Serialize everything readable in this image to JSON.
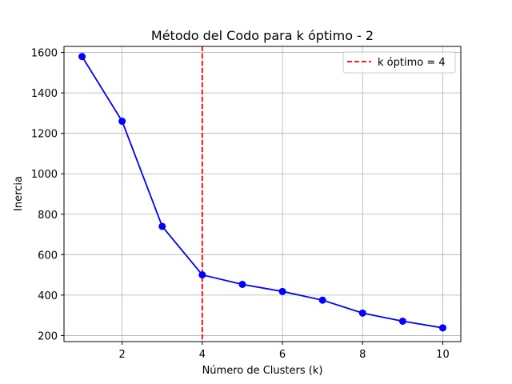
{
  "chart_data": {
    "type": "line",
    "title": "Método del Codo para k óptimo - 2",
    "xlabel": "Número de Clusters (k)",
    "ylabel": "Inercia",
    "xlim": [
      0.55,
      10.45
    ],
    "ylim": [
      170,
      1630
    ],
    "xticks": [
      2,
      4,
      6,
      8,
      10
    ],
    "yticks": [
      200,
      400,
      600,
      800,
      1000,
      1200,
      1400,
      1600
    ],
    "grid": true,
    "legend_position": "top-right",
    "series": [
      {
        "color": "#0000ff",
        "marker": "circle",
        "x": [
          1,
          2,
          3,
          4,
          5,
          6,
          7,
          8,
          9,
          10
        ],
        "y": [
          1580,
          1260,
          740,
          500,
          453,
          418,
          375,
          311,
          271,
          238
        ]
      }
    ],
    "reference_lines": [
      {
        "axis": "x",
        "value": 4,
        "color": "#ff0000",
        "style": "dashed",
        "label": "k óptimo = 4"
      }
    ]
  }
}
